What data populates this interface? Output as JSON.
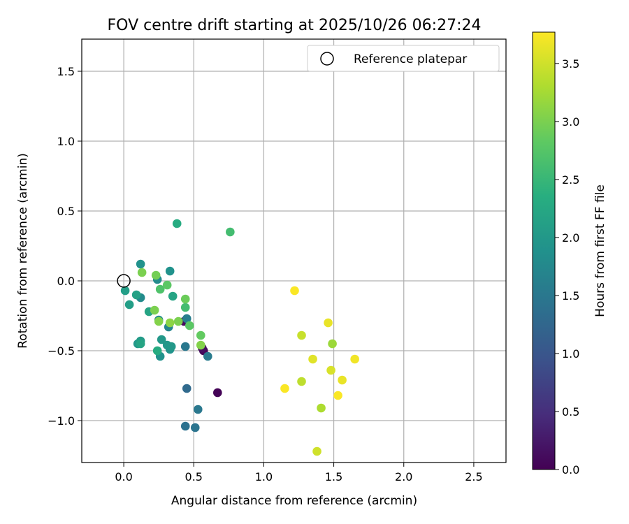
{
  "chart_data": {
    "type": "scatter",
    "title": "FOV centre drift starting at 2025/10/26 06:27:24",
    "xlabel": "Angular distance from reference (arcmin)",
    "ylabel": "Rotation from reference (arcmin)",
    "xlim": [
      -0.3,
      2.73
    ],
    "ylim": [
      -1.3,
      1.73
    ],
    "xticks": [
      0.0,
      0.5,
      1.0,
      1.5,
      2.0,
      2.5
    ],
    "yticks": [
      -1.0,
      -0.5,
      0.0,
      0.5,
      1.0,
      1.5
    ],
    "xtick_labels": [
      "0.0",
      "0.5",
      "1.0",
      "1.5",
      "2.0",
      "2.5"
    ],
    "ytick_labels": [
      "−1.0",
      "−0.5",
      "0.0",
      "0.5",
      "1.0",
      "1.5"
    ],
    "grid": true,
    "legend": {
      "position": "top-right",
      "entries": [
        "Reference platepar"
      ]
    },
    "reference_point": {
      "x": 0.0,
      "y": 0.0
    },
    "colorbar": {
      "label": "Hours from first FF file",
      "range": [
        0.0,
        3.77
      ],
      "ticks": [
        0.0,
        0.5,
        1.0,
        1.5,
        2.0,
        2.5,
        3.0,
        3.5
      ],
      "tick_labels": [
        "0.0",
        "0.5",
        "1.0",
        "1.5",
        "2.0",
        "2.5",
        "3.0",
        "3.5"
      ],
      "colormap": "viridis"
    },
    "points": [
      {
        "x": 0.67,
        "y": -0.8,
        "c": 0.02
      },
      {
        "x": 0.57,
        "y": -0.5,
        "c": 0.05
      },
      {
        "x": 0.43,
        "y": -0.29,
        "c": 0.1
      },
      {
        "x": 0.56,
        "y": -0.48,
        "c": 0.15
      },
      {
        "x": 0.45,
        "y": -0.77,
        "c": 1.3
      },
      {
        "x": 0.44,
        "y": -1.04,
        "c": 1.4
      },
      {
        "x": 0.51,
        "y": -1.05,
        "c": 1.45
      },
      {
        "x": 0.53,
        "y": -0.92,
        "c": 1.5
      },
      {
        "x": 0.44,
        "y": -0.47,
        "c": 1.5
      },
      {
        "x": 0.6,
        "y": -0.54,
        "c": 1.55
      },
      {
        "x": 0.45,
        "y": -0.27,
        "c": 1.6
      },
      {
        "x": 0.32,
        "y": -0.33,
        "c": 1.7
      },
      {
        "x": 0.25,
        "y": -0.28,
        "c": 1.8
      },
      {
        "x": 0.24,
        "y": 0.01,
        "c": 1.8
      },
      {
        "x": 0.12,
        "y": -0.12,
        "c": 1.8
      },
      {
        "x": 0.12,
        "y": 0.12,
        "c": 1.9
      },
      {
        "x": 0.33,
        "y": 0.07,
        "c": 1.9
      },
      {
        "x": 0.33,
        "y": -0.49,
        "c": 1.9
      },
      {
        "x": 0.26,
        "y": -0.54,
        "c": 1.9
      },
      {
        "x": 0.27,
        "y": -0.42,
        "c": 2.0
      },
      {
        "x": 0.31,
        "y": -0.46,
        "c": 2.0
      },
      {
        "x": 0.34,
        "y": -0.47,
        "c": 2.0
      },
      {
        "x": 0.1,
        "y": -0.45,
        "c": 2.0
      },
      {
        "x": 0.12,
        "y": -0.43,
        "c": 2.05
      },
      {
        "x": 0.01,
        "y": -0.07,
        "c": 2.1
      },
      {
        "x": 0.04,
        "y": -0.17,
        "c": 2.1
      },
      {
        "x": 0.09,
        "y": -0.1,
        "c": 2.15
      },
      {
        "x": 0.12,
        "y": -0.45,
        "c": 2.2
      },
      {
        "x": 0.18,
        "y": -0.22,
        "c": 2.2
      },
      {
        "x": 0.35,
        "y": -0.11,
        "c": 2.2
      },
      {
        "x": 0.24,
        "y": -0.5,
        "c": 2.3
      },
      {
        "x": 0.38,
        "y": 0.41,
        "c": 2.3
      },
      {
        "x": 0.44,
        "y": -0.19,
        "c": 2.6
      },
      {
        "x": 0.76,
        "y": 0.35,
        "c": 2.6
      },
      {
        "x": 0.26,
        "y": -0.06,
        "c": 2.7
      },
      {
        "x": 0.47,
        "y": -0.32,
        "c": 2.8
      },
      {
        "x": 0.31,
        "y": -0.03,
        "c": 2.8
      },
      {
        "x": 0.55,
        "y": -0.39,
        "c": 2.85
      },
      {
        "x": 0.44,
        "y": -0.13,
        "c": 2.9
      },
      {
        "x": 0.23,
        "y": 0.04,
        "c": 2.95
      },
      {
        "x": 0.13,
        "y": 0.06,
        "c": 3.0
      },
      {
        "x": 0.22,
        "y": -0.21,
        "c": 3.0
      },
      {
        "x": 0.39,
        "y": -0.29,
        "c": 3.0
      },
      {
        "x": 0.55,
        "y": -0.46,
        "c": 3.05
      },
      {
        "x": 0.25,
        "y": -0.29,
        "c": 3.05
      },
      {
        "x": 0.33,
        "y": -0.3,
        "c": 3.1
      },
      {
        "x": 1.49,
        "y": -0.45,
        "c": 3.2
      },
      {
        "x": 1.41,
        "y": -0.91,
        "c": 3.3
      },
      {
        "x": 1.27,
        "y": -0.72,
        "c": 3.4
      },
      {
        "x": 1.27,
        "y": -0.39,
        "c": 3.45
      },
      {
        "x": 1.38,
        "y": -1.22,
        "c": 3.5
      },
      {
        "x": 1.48,
        "y": -0.64,
        "c": 3.55
      },
      {
        "x": 1.35,
        "y": -0.56,
        "c": 3.6
      },
      {
        "x": 1.46,
        "y": -0.3,
        "c": 3.65
      },
      {
        "x": 1.56,
        "y": -0.71,
        "c": 3.65
      },
      {
        "x": 1.65,
        "y": -0.56,
        "c": 3.7
      },
      {
        "x": 1.53,
        "y": -0.82,
        "c": 3.75
      },
      {
        "x": 1.22,
        "y": -0.07,
        "c": 3.75
      },
      {
        "x": 1.15,
        "y": -0.77,
        "c": 3.75
      }
    ]
  }
}
